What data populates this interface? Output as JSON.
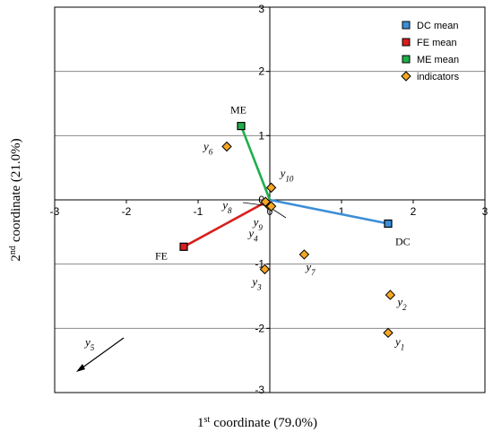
{
  "chart_data": {
    "type": "scatter",
    "xlabel_sup": "st",
    "xlabel_num": "1",
    "xlabel": "coordinate (79.0%)",
    "ylabel_num": "2",
    "ylabel_sup": "nd",
    "ylabel": "coordinate (21.0%)",
    "xlim": [
      -3,
      3
    ],
    "ylim": [
      -3,
      3
    ],
    "xticks": [
      "-3",
      "-2",
      "-1",
      "0",
      "1",
      "2",
      "3"
    ],
    "yticks": [
      "3",
      "2",
      "1",
      "0",
      "-1",
      "-2",
      "-3"
    ],
    "grid": "horizontal",
    "legend_position": "top-right",
    "legend": [
      {
        "name": "DC mean",
        "color": "#3b8fd6",
        "marker": "square"
      },
      {
        "name": "FE  mean",
        "color": "#d81f1f",
        "marker": "square"
      },
      {
        "name": "ME mean",
        "color": "#1fae4b",
        "marker": "square"
      },
      {
        "name": "indicators",
        "color": "#f5a623",
        "marker": "diamond"
      }
    ],
    "means": [
      {
        "label": "DC",
        "x": 1.65,
        "y": -0.37,
        "color": "#3b8fd6"
      },
      {
        "label": "FE",
        "x": -1.2,
        "y": -0.73,
        "color": "#d81f1f"
      },
      {
        "label": "ME",
        "x": -0.4,
        "y": 1.15,
        "color": "#1fae4b"
      }
    ],
    "indicators": [
      {
        "label": "y",
        "sub": "1",
        "x": 1.65,
        "y": -2.07
      },
      {
        "label": "y",
        "sub": "2",
        "x": 1.68,
        "y": -1.48
      },
      {
        "label": "y",
        "sub": "3",
        "x": -0.07,
        "y": -1.08
      },
      {
        "label": "y",
        "sub": "4",
        "x": -0.02,
        "y": -0.08
      },
      {
        "label": "y",
        "sub": "5",
        "x": -2.7,
        "y": -2.7
      },
      {
        "label": "y",
        "sub": "6",
        "x": -0.6,
        "y": 0.83
      },
      {
        "label": "y",
        "sub": "7",
        "x": 0.48,
        "y": -0.85
      },
      {
        "label": "y",
        "sub": "8",
        "x": -0.06,
        "y": -0.03
      },
      {
        "label": "y",
        "sub": "9",
        "x": 0.02,
        "y": -0.1
      },
      {
        "label": "y",
        "sub": "10",
        "x": 0.02,
        "y": 0.19
      }
    ]
  }
}
